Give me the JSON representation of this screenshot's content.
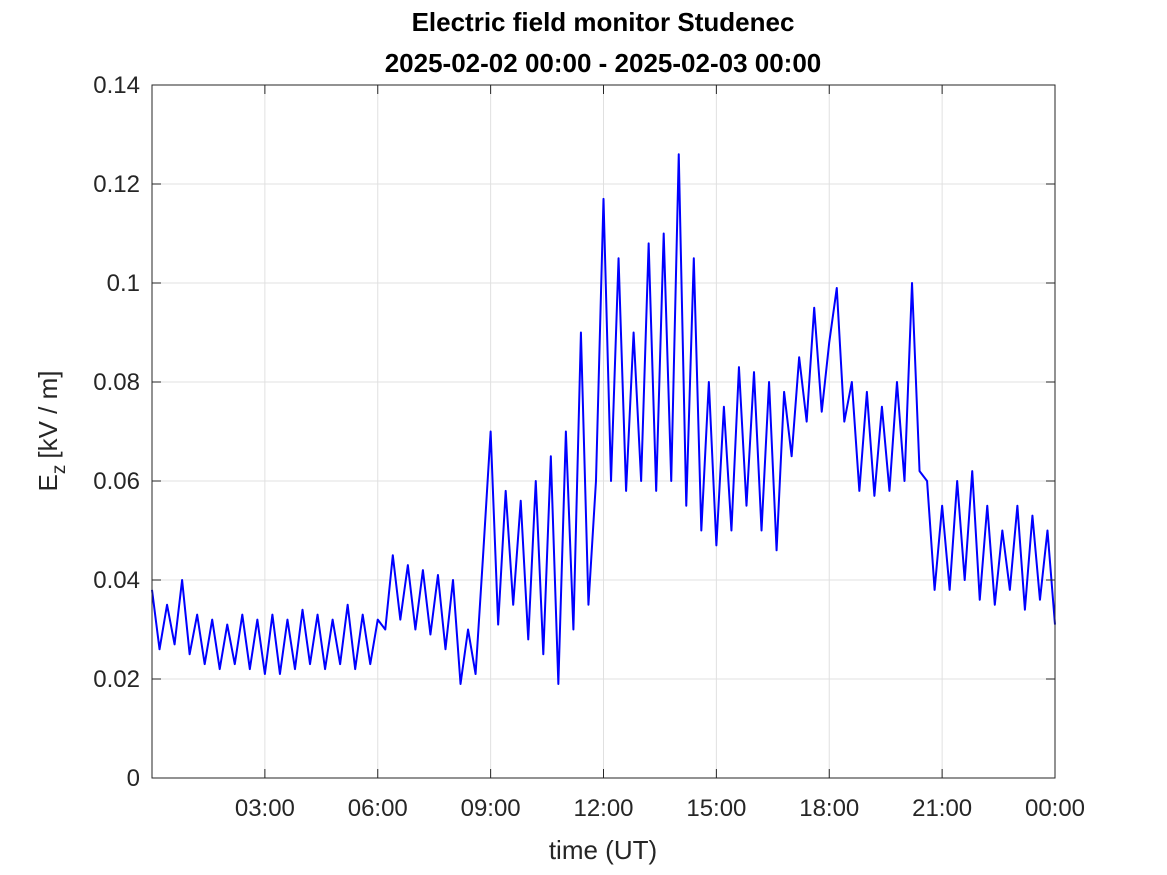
{
  "chart_data": {
    "type": "line",
    "title": [
      "Electric field monitor Studenec",
      "2025-02-02 00:00 - 2025-02-03 00:00"
    ],
    "xlabel": "time (UT)",
    "ylabel": {
      "symbol": "E",
      "subscript": "z",
      "unit": "[kV / m]"
    },
    "color": "#0000ff",
    "grid": true,
    "xlim": [
      0,
      24
    ],
    "xticks": [
      {
        "value": 3,
        "label": "03:00"
      },
      {
        "value": 6,
        "label": "06:00"
      },
      {
        "value": 9,
        "label": "09:00"
      },
      {
        "value": 12,
        "label": "12:00"
      },
      {
        "value": 15,
        "label": "15:00"
      },
      {
        "value": 18,
        "label": "18:00"
      },
      {
        "value": 21,
        "label": "21:00"
      },
      {
        "value": 24,
        "label": "00:00"
      }
    ],
    "ylim": [
      0,
      0.14
    ],
    "yticks": [
      0,
      0.02,
      0.04,
      0.06,
      0.08,
      0.1,
      0.12,
      0.14
    ],
    "x": [
      0,
      0.2,
      0.4,
      0.6,
      0.8,
      1,
      1.2,
      1.4,
      1.6,
      1.8,
      2,
      2.2,
      2.4,
      2.6,
      2.8,
      3,
      3.2,
      3.4,
      3.6,
      3.8,
      4,
      4.2,
      4.4,
      4.6,
      4.8,
      5,
      5.2,
      5.4,
      5.6,
      5.8,
      6,
      6.2,
      6.4,
      6.6,
      6.8,
      7,
      7.2,
      7.4,
      7.6,
      7.8,
      8,
      8.2,
      8.4,
      8.6,
      8.8,
      9,
      9.2,
      9.4,
      9.6,
      9.8,
      10,
      10.2,
      10.4,
      10.6,
      10.8,
      11,
      11.2,
      11.4,
      11.6,
      11.8,
      12,
      12.2,
      12.4,
      12.6,
      12.8,
      13,
      13.2,
      13.4,
      13.6,
      13.8,
      14,
      14.2,
      14.4,
      14.6,
      14.8,
      15,
      15.2,
      15.4,
      15.6,
      15.8,
      16,
      16.2,
      16.4,
      16.6,
      16.8,
      17,
      17.2,
      17.4,
      17.6,
      17.8,
      18,
      18.2,
      18.4,
      18.6,
      18.8,
      19,
      19.2,
      19.4,
      19.6,
      19.8,
      20,
      20.2,
      20.4,
      20.6,
      20.8,
      21,
      21.2,
      21.4,
      21.6,
      21.8,
      22,
      22.2,
      22.4,
      22.6,
      22.8,
      23,
      23.2,
      23.4,
      23.6,
      23.8,
      24
    ],
    "values": [
      0.038,
      0.026,
      0.035,
      0.027,
      0.04,
      0.025,
      0.033,
      0.023,
      0.032,
      0.022,
      0.031,
      0.023,
      0.033,
      0.022,
      0.032,
      0.021,
      0.033,
      0.021,
      0.032,
      0.022,
      0.034,
      0.023,
      0.033,
      0.022,
      0.032,
      0.023,
      0.035,
      0.022,
      0.033,
      0.023,
      0.032,
      0.03,
      0.045,
      0.032,
      0.043,
      0.03,
      0.042,
      0.029,
      0.041,
      0.026,
      0.04,
      0.019,
      0.03,
      0.021,
      0.045,
      0.07,
      0.031,
      0.058,
      0.035,
      0.056,
      0.028,
      0.06,
      0.025,
      0.065,
      0.019,
      0.07,
      0.03,
      0.09,
      0.035,
      0.06,
      0.117,
      0.06,
      0.105,
      0.058,
      0.09,
      0.06,
      0.108,
      0.058,
      0.11,
      0.06,
      0.126,
      0.055,
      0.105,
      0.05,
      0.08,
      0.047,
      0.075,
      0.05,
      0.083,
      0.055,
      0.082,
      0.05,
      0.08,
      0.046,
      0.078,
      0.065,
      0.085,
      0.072,
      0.095,
      0.074,
      0.088,
      0.099,
      0.072,
      0.08,
      0.058,
      0.078,
      0.057,
      0.075,
      0.058,
      0.08,
      0.06,
      0.1,
      0.062,
      0.06,
      0.038,
      0.055,
      0.038,
      0.06,
      0.04,
      0.062,
      0.036,
      0.055,
      0.035,
      0.05,
      0.038,
      0.055,
      0.034,
      0.053,
      0.036,
      0.05,
      0.031
    ]
  }
}
